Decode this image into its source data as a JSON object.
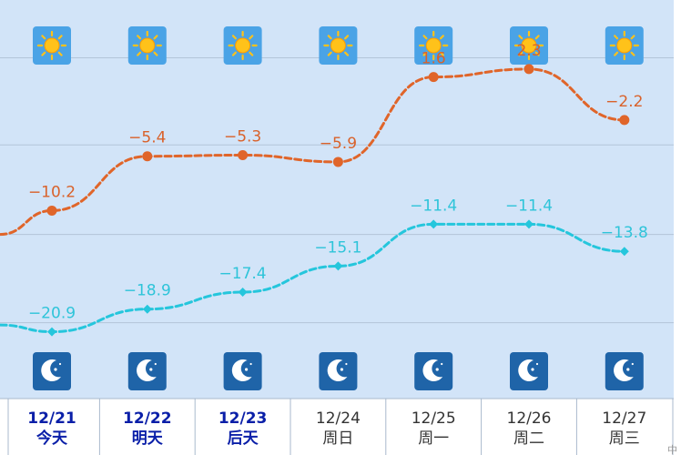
{
  "chart_data": {
    "type": "line",
    "title": "",
    "xlabel": "",
    "ylabel": "",
    "x": [
      "12/21",
      "12/22",
      "12/23",
      "12/24",
      "12/25",
      "12/26",
      "12/27"
    ],
    "weekday_labels": [
      "今天",
      "明天",
      "后天",
      "周日",
      "周一",
      "周二",
      "周三"
    ],
    "highlighted_days": [
      0,
      1,
      2
    ],
    "series": [
      {
        "key": "high",
        "values": [
          -10.2,
          -5.4,
          -5.3,
          -5.9,
          1.6,
          2.3,
          -2.2
        ],
        "labels": [
          "−10.2",
          "−5.4",
          "−5.3",
          "−5.9",
          "1.6",
          "2.3",
          "−2.2"
        ],
        "color": "#e0652a"
      },
      {
        "key": "low",
        "values": [
          -20.9,
          -18.9,
          -17.4,
          -15.1,
          -11.4,
          -11.4,
          -13.8
        ],
        "labels": [
          "−20.9",
          "−18.9",
          "−17.4",
          "−15.1",
          "−11.4",
          "−11.4",
          "−13.8"
        ],
        "color": "#25c6dc"
      }
    ],
    "edge_values": {
      "high_left": -12.3,
      "low_left": -20.3
    },
    "ylim": [
      -26.8,
      8.4
    ],
    "gridlines_y": [
      3.3,
      -4.4,
      -12.3,
      -20.1
    ],
    "grid": true,
    "legend": "none",
    "day_icons": [
      "sunny-icon",
      "sunny-icon",
      "sunny-icon",
      "sunny-icon",
      "sunny-icon",
      "sunny-icon",
      "sunny-icon"
    ],
    "night_icons": [
      "moon-icon",
      "moon-icon",
      "moon-icon",
      "moon-icon",
      "moon-icon",
      "moon-icon",
      "moon-icon"
    ],
    "colors": {
      "plot_background": "#d2e4f8",
      "grid": "#b3c5d9",
      "divider": "#a9bacd",
      "date_highlight": "#0a1fa8",
      "date_normal": "#333333"
    }
  },
  "corner_text": "中"
}
